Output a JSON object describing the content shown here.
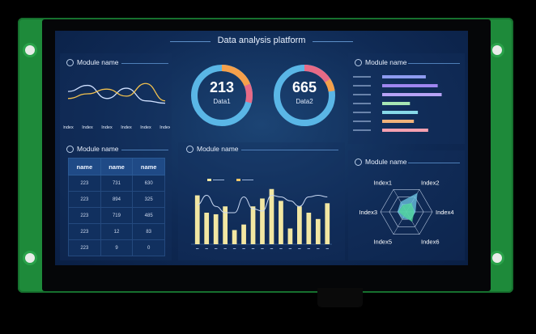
{
  "header": {
    "title": "Data analysis platform"
  },
  "modules": {
    "top_left": "Module name",
    "top_right": "Module name",
    "mid_left": "Module name",
    "mid_center": "Module name",
    "mid_right": "Module name"
  },
  "rings": [
    {
      "value": "213",
      "label": "Data1"
    },
    {
      "value": "665",
      "label": "Data2"
    }
  ],
  "line_chart": {
    "x_labels": [
      "Index",
      "Index",
      "Index",
      "Index",
      "Index",
      "Index"
    ]
  },
  "table": {
    "headers": [
      "name",
      "name",
      "name"
    ],
    "rows": [
      [
        "223",
        "731",
        "630"
      ],
      [
        "223",
        "894",
        "325"
      ],
      [
        "223",
        "719",
        "485"
      ],
      [
        "223",
        "12",
        "83"
      ],
      [
        "223",
        "9",
        "0"
      ]
    ]
  },
  "radar": {
    "labels": [
      "Index1",
      "Index2",
      "Index4",
      "Index6",
      "Index5",
      "Index3"
    ]
  },
  "colors": {
    "accent": "#55c2e8",
    "bar_yellow": "#f2e7a2",
    "ring_orange": "#f5a04b",
    "ring_pink": "#e86a86"
  },
  "chart_data": [
    {
      "type": "line",
      "x": [
        "Index",
        "Index",
        "Index",
        "Index",
        "Index",
        "Index"
      ],
      "series": [
        {
          "values": [
            55,
            68,
            40,
            62,
            35,
            30
          ]
        },
        {
          "values": [
            40,
            50,
            60,
            45,
            72,
            35
          ]
        }
      ],
      "ylim": [
        0,
        100
      ]
    },
    {
      "type": "bar",
      "categories": [
        "",
        "",
        "",
        "",
        "",
        "",
        "",
        "",
        "",
        "",
        "",
        "",
        "",
        "",
        ""
      ],
      "values": [
        62,
        40,
        38,
        48,
        18,
        25,
        48,
        58,
        70,
        55,
        20,
        48,
        40,
        32,
        52
      ],
      "series_lines": [
        {
          "values": [
            50,
            62,
            48,
            40,
            40,
            60,
            45,
            42,
            62,
            60,
            55,
            48,
            60,
            62,
            60
          ]
        }
      ],
      "legend": [
        {
          "label": "",
          "color": "#f2e7a2"
        },
        {
          "label": "",
          "color": "#f2c76a"
        }
      ],
      "ylim": [
        0,
        80
      ]
    },
    {
      "type": "bar",
      "orientation": "horizontal",
      "categories": [
        "",
        "",
        "",
        "",
        "",
        "",
        ""
      ],
      "values": [
        55,
        70,
        75,
        35,
        45,
        40,
        58
      ],
      "colors": [
        "#8e9bf0",
        "#9f86f0",
        "#b7a3f5",
        "#a8e6b4",
        "#87d9e8",
        "#f0b27a",
        "#f5a0b0"
      ],
      "xlim": [
        0,
        100
      ]
    },
    {
      "type": "radar",
      "categories": [
        "Index1",
        "Index2",
        "Index4",
        "Index6",
        "Index5",
        "Index3"
      ],
      "series": [
        {
          "values": [
            0.45,
            0.85,
            0.35,
            0.35,
            0.3,
            0.35
          ]
        },
        {
          "values": [
            0.3,
            0.4,
            0.3,
            0.45,
            0.2,
            0.3
          ]
        }
      ]
    }
  ]
}
